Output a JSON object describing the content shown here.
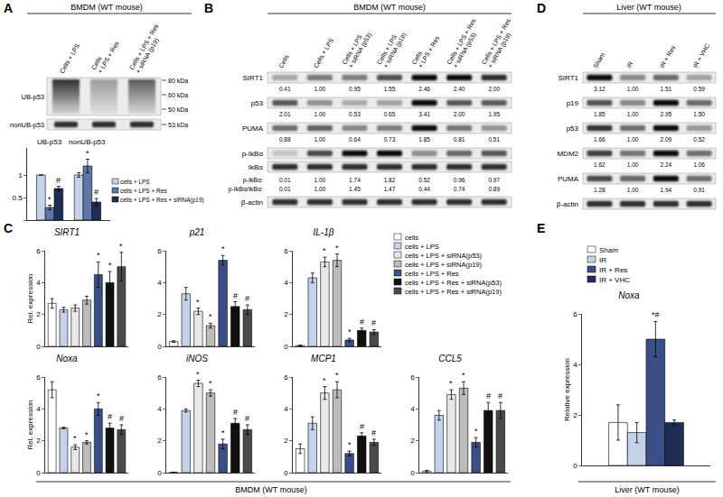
{
  "chart_data": [
    {
      "type": "bar",
      "categories": [
        "UB-p53",
        "nonUB-p53"
      ],
      "series": [
        {
          "name": "cells + LPS",
          "color": "#c5d3ea",
          "values": [
            1.0,
            1.0
          ],
          "errors": [
            0.0,
            0.05
          ],
          "annotations": [
            null,
            null
          ]
        },
        {
          "name": "cells + LPS + Res",
          "color": "#5e77a8",
          "values": [
            0.28,
            1.2
          ],
          "errors": [
            0.05,
            0.15
          ],
          "annotations": [
            "*",
            "*"
          ]
        },
        {
          "name": "cells + LPS + Res + siRNA(p19)",
          "color": "#1f2d55",
          "values": [
            0.7,
            0.4
          ],
          "errors": [
            0.05,
            0.08
          ],
          "annotations": [
            "#",
            "#"
          ]
        }
      ],
      "ylim": [
        0,
        1.6
      ],
      "yticks": [
        0,
        0.5,
        1
      ],
      "grid": false,
      "tick_labels": "y"
    },
    {
      "type": "bar",
      "title": "SIRT1",
      "y_label": "Rel. expression",
      "categories": [
        null,
        null,
        null,
        null,
        null,
        null,
        null
      ],
      "values": [
        2.7,
        2.3,
        2.4,
        2.9,
        4.5,
        4.0,
        5.0
      ],
      "errors": [
        0.3,
        0.15,
        0.2,
        0.25,
        0.8,
        0.7,
        0.9
      ],
      "annotations": [
        null,
        null,
        null,
        null,
        "*",
        "*",
        "*"
      ],
      "colors": [
        "#ffffff",
        "#c5d3ea",
        "#e8e8e8",
        "#bcbcbc",
        "#3a4f86",
        "#111111",
        "#4a4a4a"
      ],
      "ylim": [
        0,
        6
      ],
      "yticks": [
        0,
        2,
        4,
        6
      ],
      "grid": false,
      "tick_labels": "y"
    },
    {
      "type": "bar",
      "title": "p21",
      "categories": [
        null,
        null,
        null,
        null,
        null,
        null,
        null
      ],
      "values": [
        0.3,
        3.3,
        2.2,
        1.3,
        5.4,
        2.5,
        2.3
      ],
      "errors": [
        0.05,
        0.4,
        0.2,
        0.15,
        0.3,
        0.3,
        0.3
      ],
      "annotations": [
        null,
        null,
        "*",
        "*",
        "*",
        "#",
        "#"
      ],
      "colors": [
        "#ffffff",
        "#c5d3ea",
        "#e8e8e8",
        "#bcbcbc",
        "#3a4f86",
        "#111111",
        "#4a4a4a"
      ],
      "ylim": [
        0,
        6
      ],
      "yticks": [
        0,
        2,
        4,
        6
      ],
      "grid": false,
      "tick_labels": "y"
    },
    {
      "type": "bar",
      "title": "IL-1β",
      "categories": [
        null,
        null,
        null,
        null,
        null,
        null,
        null
      ],
      "values": [
        0.05,
        4.3,
        5.3,
        5.4,
        0.4,
        1.0,
        0.9
      ],
      "errors": [
        0.02,
        0.3,
        0.3,
        0.4,
        0.1,
        0.15,
        0.15
      ],
      "annotations": [
        null,
        null,
        "*",
        "*",
        "*",
        "#",
        "#"
      ],
      "colors": [
        "#ffffff",
        "#c5d3ea",
        "#e8e8e8",
        "#bcbcbc",
        "#3a4f86",
        "#111111",
        "#4a4a4a"
      ],
      "ylim": [
        0,
        6
      ],
      "yticks": [
        0,
        2,
        4,
        6
      ],
      "grid": false,
      "tick_labels": "y"
    },
    {
      "type": "bar",
      "title": "Noxa",
      "y_label": "Rel. expression",
      "categories": [
        null,
        null,
        null,
        null,
        null,
        null,
        null
      ],
      "values": [
        5.2,
        2.8,
        1.6,
        1.9,
        4.0,
        2.8,
        2.7
      ],
      "errors": [
        0.5,
        0.05,
        0.15,
        0.1,
        0.4,
        0.3,
        0.3
      ],
      "annotations": [
        null,
        null,
        "*",
        "*",
        "*",
        "#",
        "#"
      ],
      "colors": [
        "#ffffff",
        "#c5d3ea",
        "#e8e8e8",
        "#bcbcbc",
        "#3a4f86",
        "#111111",
        "#4a4a4a"
      ],
      "ylim": [
        0,
        6
      ],
      "yticks": [
        0,
        2,
        4,
        6
      ],
      "grid": false,
      "tick_labels": "y"
    },
    {
      "type": "bar",
      "title": "iNOS",
      "categories": [
        null,
        null,
        null,
        null,
        null,
        null,
        null
      ],
      "values": [
        0.02,
        3.9,
        5.6,
        5.0,
        1.8,
        3.1,
        2.7
      ],
      "errors": [
        0.01,
        0.1,
        0.2,
        0.2,
        0.3,
        0.3,
        0.3
      ],
      "annotations": [
        null,
        null,
        "*",
        "*",
        "*",
        "#",
        "#"
      ],
      "colors": [
        "#ffffff",
        "#c5d3ea",
        "#e8e8e8",
        "#bcbcbc",
        "#3a4f86",
        "#111111",
        "#4a4a4a"
      ],
      "ylim": [
        0,
        6
      ],
      "yticks": [
        0,
        2,
        4,
        6
      ],
      "grid": false,
      "tick_labels": "y"
    },
    {
      "type": "bar",
      "title": "MCP1",
      "categories": [
        null,
        null,
        null,
        null,
        null,
        null,
        null
      ],
      "values": [
        1.5,
        3.1,
        5.0,
        5.2,
        1.2,
        2.3,
        1.9
      ],
      "errors": [
        0.3,
        0.4,
        0.4,
        0.5,
        0.15,
        0.2,
        0.2
      ],
      "annotations": [
        null,
        null,
        "*",
        "*",
        "*",
        "#",
        "#"
      ],
      "colors": [
        "#ffffff",
        "#c5d3ea",
        "#e8e8e8",
        "#bcbcbc",
        "#3a4f86",
        "#111111",
        "#4a4a4a"
      ],
      "ylim": [
        0,
        6
      ],
      "yticks": [
        0,
        2,
        4,
        6
      ],
      "grid": false,
      "tick_labels": "y"
    },
    {
      "type": "bar",
      "title": "CCL5",
      "categories": [
        null,
        null,
        null,
        null,
        null,
        null,
        null
      ],
      "values": [
        0.1,
        3.6,
        4.9,
        5.3,
        1.9,
        3.9,
        3.9
      ],
      "errors": [
        0.05,
        0.3,
        0.3,
        0.4,
        0.3,
        0.5,
        0.5
      ],
      "annotations": [
        null,
        null,
        "*",
        "*",
        "*",
        "#",
        "#"
      ],
      "colors": [
        "#ffffff",
        "#c5d3ea",
        "#e8e8e8",
        "#bcbcbc",
        "#3a4f86",
        "#111111",
        "#4a4a4a"
      ],
      "ylim": [
        0,
        6
      ],
      "yticks": [
        0,
        2,
        4,
        6
      ],
      "grid": false,
      "tick_labels": "y"
    },
    {
      "type": "bar",
      "title": "Noxa",
      "y_label": "Relative expression",
      "categories": [
        null
      ],
      "series": [
        {
          "name": "Sham",
          "color": "#ffffff",
          "values": [
            1.7
          ],
          "errors": [
            0.7
          ],
          "annotations": [
            null
          ]
        },
        {
          "name": "IR",
          "color": "#c5d3ea",
          "values": [
            1.3
          ],
          "errors": [
            0.4
          ],
          "annotations": [
            null
          ]
        },
        {
          "name": "IR + Res",
          "color": "#3a4f86",
          "values": [
            5.0
          ],
          "errors": [
            0.7
          ],
          "annotations": [
            "*#"
          ]
        },
        {
          "name": "IR + VHC",
          "color": "#1f2d55",
          "values": [
            1.7
          ],
          "errors": [
            0.1
          ],
          "annotations": [
            null
          ]
        }
      ],
      "ylim": [
        0,
        6
      ],
      "yticks": [
        0,
        2,
        4,
        6
      ],
      "grid": false,
      "tick_labels": "y"
    }
  ],
  "figure": {
    "A": {
      "letter": "A",
      "header": "BMDM (WT mouse)",
      "lanes": [
        "Cells + LPS",
        "Cells + LPS + Res",
        "Cells + LPS + Res + siRNA (p19)"
      ],
      "rows": [
        {
          "label": "UB-p53",
          "sizes": [
            "80 kDa",
            "60 kDa",
            "50 kDa"
          ]
        },
        {
          "label": "nonUB-p53",
          "sizes": [
            "53 kDa"
          ]
        }
      ]
    },
    "B": {
      "letter": "B",
      "header": "BMDM (WT mouse)",
      "lanes": [
        "Cells",
        "Cells + LPS",
        "Cells + LPS + siRNA (p53)",
        "Cells + LPS + siRNA (p19)",
        "Cells + LPS + Res",
        "Cells + LPS + Res + siRNA (p53)",
        "Cells + LPS + Res + siRNA (p19)"
      ],
      "rows": [
        {
          "label": "SIRT1",
          "quant": [
            "0.41",
            "1.00",
            "0.95",
            "1.55",
            "2.46",
            "2.40",
            "2.00"
          ]
        },
        {
          "label": "p53",
          "quant": [
            "2.01",
            "1.00",
            "0.53",
            "0.65",
            "3.41",
            "2.00",
            "1.95"
          ]
        },
        {
          "label": "PUMA",
          "quant": [
            "0.88",
            "1.00",
            "0.64",
            "0.73",
            "1.85",
            "0.81",
            "0.51"
          ]
        },
        {
          "label": "p-IkBα"
        },
        {
          "label": "IkBα"
        }
      ],
      "ratios": [
        {
          "label": "p-IkBα:",
          "quant": [
            "0.01",
            "1.00",
            "1.74",
            "1.82",
            "0.52",
            "0.96",
            "0.97"
          ]
        },
        {
          "label": "p-IkBα/IkBα:",
          "quant": [
            "0.01",
            "1.00",
            "1.45",
            "1.47",
            "0.44",
            "0.74",
            "0.89"
          ]
        }
      ],
      "control": {
        "label": "β-actin"
      }
    },
    "C": {
      "letter": "C",
      "footer": "BMDM (WT mouse)",
      "legend_names": [
        "cells",
        "cells + LPS",
        "cells + LPS + siRNA(p53)",
        "cells + LPS + siRNA(p19)",
        "cells + LPS + Res",
        "cells + LPS + Res + siRNA(p53)",
        "cells + LPS + Res + siRNA(p19)"
      ]
    },
    "D": {
      "letter": "D",
      "header": "Liver (WT mouse)",
      "lanes": [
        "Sham",
        "IR",
        "IR + Res",
        "IR + VHC"
      ],
      "rows": [
        {
          "label": "SIRT1",
          "quant": [
            "3.12",
            "1.00",
            "1.51",
            "0.59"
          ]
        },
        {
          "label": "p19",
          "quant": [
            "1.85",
            "1.00",
            "2.95",
            "1.50"
          ]
        },
        {
          "label": "p53",
          "quant": [
            "1.66",
            "1.00",
            "2.09",
            "0.52"
          ]
        },
        {
          "label": "MDM2",
          "quant": [
            "1.62",
            "1.00",
            "2.24",
            "1.06"
          ]
        },
        {
          "label": "PUMA",
          "quant": [
            "1.28",
            "1.00",
            "1.94",
            "0.91"
          ]
        }
      ],
      "control": {
        "label": "β-actin"
      }
    },
    "E": {
      "letter": "E",
      "footer": "Liver (WT mouse)"
    }
  }
}
